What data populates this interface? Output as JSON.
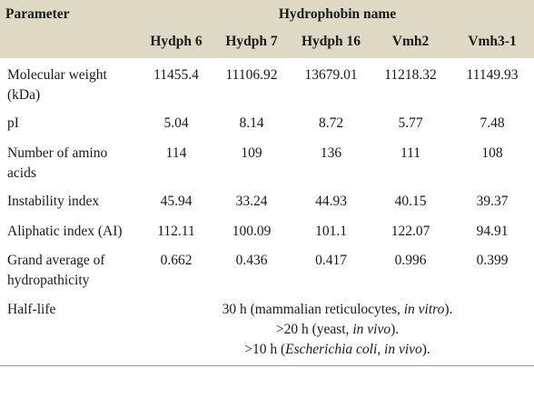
{
  "header": {
    "parameter": "Parameter",
    "group": "Hydrophobin name",
    "columns": [
      "Hydph 6",
      "Hydph 7",
      "Hydph 16",
      "Vmh2",
      "Vmh3-1"
    ]
  },
  "rows": [
    {
      "label": "Molecular weight (kDa)",
      "values": [
        "11455.4",
        "11106.92",
        "13679.01",
        "11218.32",
        "11149.93"
      ]
    },
    {
      "label": "pI",
      "values": [
        "5.04",
        "8.14",
        "8.72",
        "5.77",
        "7.48"
      ]
    },
    {
      "label": "Number of amino acids",
      "values": [
        "114",
        "109",
        "136",
        "111",
        "108"
      ]
    },
    {
      "label": "Instability index",
      "values": [
        "45.94",
        "33.24",
        "44.93",
        "40.15",
        "39.37"
      ]
    },
    {
      "label": "Aliphatic index (AI)",
      "values": [
        "112.11",
        "100.09",
        "101.1",
        "122.07",
        "94.91"
      ]
    },
    {
      "label": "Grand average of hydropathicity",
      "values": [
        "0.662",
        "0.436",
        "0.417",
        "0.996",
        "0.399"
      ]
    }
  ],
  "half_life": {
    "label": "Half-life",
    "lines": [
      {
        "pre": "30 h (mammalian reticulocytes, ",
        "em": "in vitro",
        "post": ")."
      },
      {
        "pre": ">20 h (yeast, ",
        "em": "in vivo",
        "post": ")."
      },
      {
        "pre": ">10 h (",
        "em": "Escherichia coli, in vivo",
        "post": ")."
      }
    ]
  }
}
